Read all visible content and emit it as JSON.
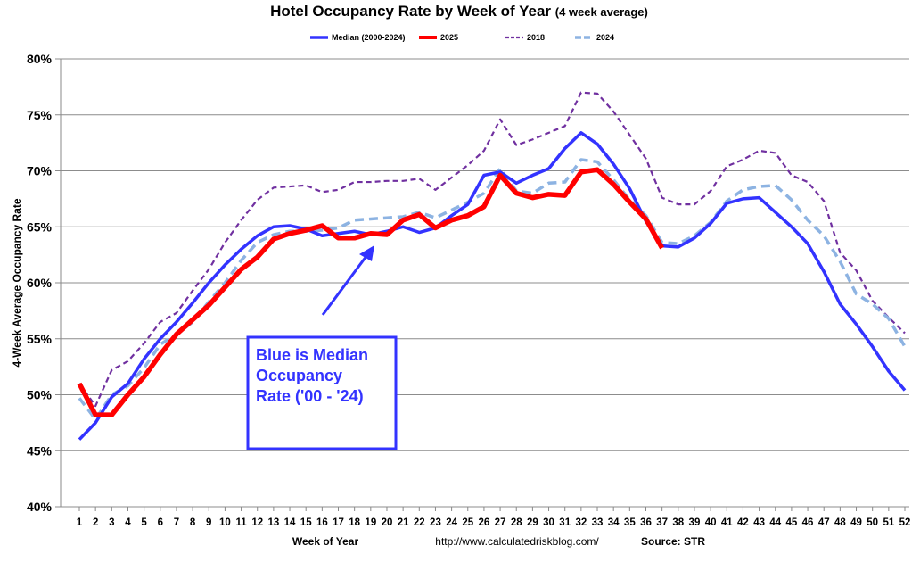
{
  "chart_data": {
    "type": "line",
    "title": "Hotel Occupancy Rate by  Week of Year",
    "subtitle": "(4 week average)",
    "xlabel": "Week of Year",
    "ylabel": "4-Week Average Occupancy Rate",
    "source_url": "http://www.calculatedriskblog.com/",
    "source": "Source: STR",
    "ylim": [
      40,
      80
    ],
    "y_ticks": [
      "40%",
      "45%",
      "50%",
      "55%",
      "60%",
      "65%",
      "70%",
      "75%",
      "80%"
    ],
    "xlim": [
      1,
      52
    ],
    "grid": "horizontal",
    "legend_position": "top",
    "annotation": [
      "Blue is Median",
      "Occupancy",
      "Rate ('00 - '24)"
    ],
    "annotation_color": "#3333ff",
    "series": [
      {
        "name": "Median (2000-2024)",
        "color": "#3333ff",
        "style": "solid",
        "values": [
          46.0,
          47.5,
          49.8,
          51.0,
          53.2,
          55.0,
          56.5,
          58.2,
          60.0,
          61.6,
          63.0,
          64.2,
          65.0,
          65.1,
          64.8,
          64.2,
          64.4,
          64.6,
          64.3,
          64.6,
          65.0,
          64.5,
          64.9,
          66.0,
          67.0,
          69.6,
          69.9,
          68.9,
          69.6,
          70.2,
          72.0,
          73.4,
          72.4,
          70.6,
          68.4,
          65.5,
          63.3,
          63.2,
          64.0,
          65.3,
          67.1,
          67.5,
          67.6,
          66.3,
          65.0,
          63.5,
          61.0,
          58.1,
          56.3,
          54.3,
          52.1,
          50.4
        ]
      },
      {
        "name": "2025",
        "color": "#ff0000",
        "style": "solid-thick",
        "values": [
          51.0,
          48.2,
          48.2,
          50.0,
          51.6,
          53.6,
          55.4,
          56.7,
          58.0,
          59.6,
          61.2,
          62.3,
          63.9,
          64.4,
          64.7,
          65.1,
          64.0,
          64.0,
          64.4,
          64.3,
          65.6,
          66.1,
          64.9,
          65.6,
          66.0,
          66.8,
          69.6,
          68.0,
          67.6,
          67.9,
          67.8,
          69.9,
          70.1,
          68.8,
          67.2,
          65.7,
          63.1
        ]
      },
      {
        "name": "2018",
        "color": "#7030a0",
        "style": "dashed",
        "values": [
          51.0,
          49.0,
          52.2,
          53.0,
          54.6,
          56.5,
          57.3,
          59.3,
          61.2,
          63.6,
          65.6,
          67.4,
          68.5,
          68.6,
          68.7,
          68.1,
          68.3,
          69.0,
          69.0,
          69.1,
          69.1,
          69.3,
          68.3,
          69.4,
          70.5,
          71.8,
          74.6,
          72.3,
          72.8,
          73.4,
          74.0,
          77.0,
          76.9,
          75.3,
          73.2,
          71.1,
          67.6,
          67.0,
          67.0,
          68.2,
          70.4,
          71.0,
          71.8,
          71.6,
          69.6,
          69.0,
          67.3,
          62.7,
          61.1,
          58.4,
          56.9,
          55.5
        ]
      },
      {
        "name": "2024",
        "color": "#8db3e2",
        "style": "dashed-thick",
        "values": [
          49.7,
          47.8,
          50.0,
          50.8,
          52.4,
          54.5,
          55.4,
          56.5,
          58.3,
          60.0,
          62.0,
          63.6,
          64.3,
          64.6,
          64.6,
          64.7,
          64.9,
          65.6,
          65.7,
          65.8,
          65.9,
          66.3,
          65.8,
          66.5,
          67.2,
          68.0,
          70.2,
          68.2,
          68.0,
          68.9,
          69.0,
          71.0,
          70.8,
          69.2,
          67.4,
          66.0,
          63.6,
          63.5,
          64.2,
          65.4,
          67.3,
          68.3,
          68.6,
          68.7,
          67.4,
          65.6,
          64.2,
          61.9,
          59.0,
          58.1,
          56.8,
          54.3
        ]
      }
    ]
  }
}
